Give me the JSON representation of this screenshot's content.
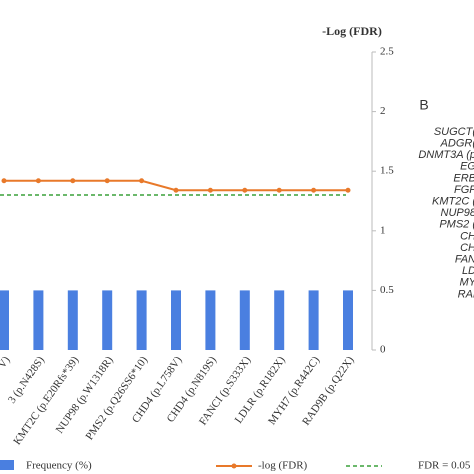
{
  "chart_data": {
    "type": "bar",
    "y_label": "-Log (FDR)",
    "categories": [
      "V)",
      "3 (p.N428S)",
      "KMT2C (p.E20Rfs*39)",
      "NUP98 (p.W1318R)",
      "PMS2 (p.Q26SS6*10)",
      "CHD4 (p.L758V)",
      "CHD4 (p.N819S)",
      "FANCI (p.S333X)",
      "LDLR (p.R182X)",
      "MYH7 (p.R442C)",
      "RAD9B (p.Q22X)"
    ],
    "series": [
      {
        "name": "Frequency (%)",
        "type": "bar",
        "color": "#4a7fe0",
        "values": [
          0.5,
          0.5,
          0.5,
          0.5,
          0.5,
          0.5,
          0.5,
          0.5,
          0.5,
          0.5,
          0.5
        ]
      },
      {
        "name": "-log (FDR)",
        "type": "line",
        "color": "#e8792a",
        "values": [
          1.42,
          1.42,
          1.42,
          1.42,
          1.42,
          1.34,
          1.34,
          1.34,
          1.34,
          1.34,
          1.34
        ]
      }
    ],
    "reference_line": {
      "name": "FDR = 0.05",
      "value": 1.3,
      "color": "#3aa03a"
    },
    "ylim": [
      0,
      2.5
    ],
    "yticks": [
      0,
      0.5,
      1,
      1.5,
      2,
      2.5
    ],
    "panel_b": {
      "label": "B",
      "items": [
        "SUGCT(",
        "ADGR(",
        "DNMT3A (p",
        "EG",
        "ERB",
        "FGF",
        "KMT2C (",
        "NUP98",
        "PMS2 (",
        "CH",
        "CH",
        "FAN",
        "LD",
        "MY",
        "RAI"
      ]
    }
  }
}
